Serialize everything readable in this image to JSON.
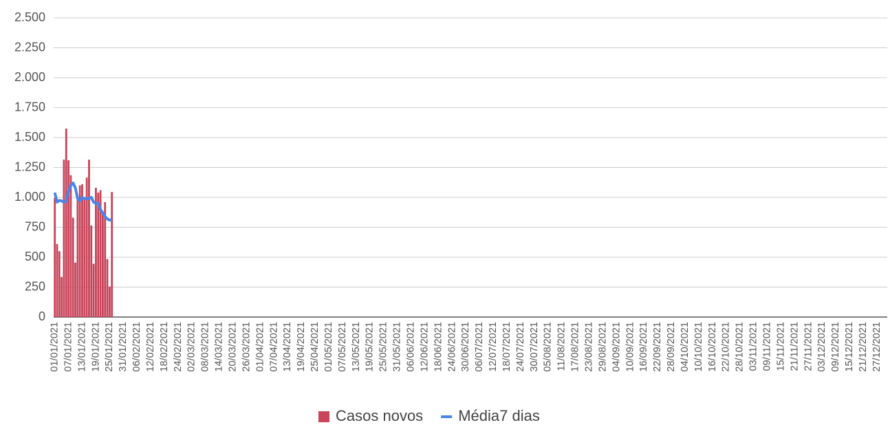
{
  "chart_data": {
    "type": "bar_line",
    "categories": [
      "01/01/2021",
      null,
      null,
      null,
      null,
      null,
      "07/01/2021",
      null,
      null,
      null,
      null,
      null,
      "13/01/2021",
      null,
      null,
      null,
      null,
      null,
      "19/01/2021",
      null,
      null,
      null,
      null,
      null,
      "25/01/2021",
      null,
      null,
      null,
      null,
      null,
      "31/01/2021",
      null,
      null,
      null,
      null,
      null,
      "06/02/2021",
      null,
      null,
      null,
      null,
      null,
      "12/02/2021",
      null,
      null,
      null,
      null,
      null,
      "18/02/2021",
      null,
      null,
      null,
      null,
      null,
      "24/02/2021",
      null,
      null,
      null,
      null,
      null,
      "02/03/2021",
      null,
      null,
      null,
      null,
      null,
      "08/03/2021",
      null,
      null,
      null,
      null,
      null,
      "14/03/2021",
      null,
      null,
      null,
      null,
      null,
      "20/03/2021",
      null,
      null,
      null,
      null,
      null,
      "26/03/2021",
      null,
      null,
      null,
      null,
      null,
      "01/04/2021",
      null,
      null,
      null,
      null,
      null,
      "07/04/2021",
      null,
      null,
      null,
      null,
      null,
      "13/04/2021",
      null,
      null,
      null,
      null,
      null,
      "19/04/2021",
      null,
      null,
      null,
      null,
      null,
      "25/04/2021",
      null,
      null,
      null,
      null,
      null,
      "01/05/2021",
      null,
      null,
      null,
      null,
      null,
      "07/05/2021",
      null,
      null,
      null,
      null,
      null,
      "13/05/2021",
      null,
      null,
      null,
      null,
      null,
      "19/05/2021",
      null,
      null,
      null,
      null,
      null,
      "25/05/2021",
      null,
      null,
      null,
      null,
      null,
      "31/05/2021",
      null,
      null,
      null,
      null,
      null,
      "06/06/2021",
      null,
      null,
      null,
      null,
      null,
      "12/06/2021",
      null,
      null,
      null,
      null,
      null,
      "18/06/2021",
      null,
      null,
      null,
      null,
      null,
      "24/06/2021",
      null,
      null,
      null,
      null,
      null,
      "30/06/2021",
      null,
      null,
      null,
      null,
      null,
      "06/07/2021",
      null,
      null,
      null,
      null,
      null,
      "12/07/2021",
      null,
      null,
      null,
      null,
      null,
      "18/07/2021",
      null,
      null,
      null,
      null,
      null,
      "24/07/2021",
      null,
      null,
      null,
      null,
      null,
      "30/07/2021",
      null,
      null,
      null,
      null,
      null,
      "05/08/2021",
      null,
      null,
      null,
      null,
      null,
      "11/08/2021",
      null,
      null,
      null,
      null,
      null,
      "17/08/2021",
      null,
      null,
      null,
      null,
      null,
      "23/08/2021",
      null,
      null,
      null,
      null,
      null,
      "29/08/2021",
      null,
      null,
      null,
      null,
      null,
      "04/09/2021",
      null,
      null,
      null,
      null,
      null,
      "10/09/2021",
      null,
      null,
      null,
      null,
      null,
      "16/09/2021",
      null,
      null,
      null,
      null,
      null,
      "22/09/2021",
      null,
      null,
      null,
      null,
      null,
      "28/09/2021",
      null,
      null,
      null,
      null,
      null,
      "04/10/2021",
      null,
      null,
      null,
      null,
      null,
      "10/10/2021",
      null,
      null,
      null,
      null,
      null,
      "16/10/2021",
      null,
      null,
      null,
      null,
      null,
      "22/10/2021",
      null,
      null,
      null,
      null,
      null,
      "28/10/2021",
      null,
      null,
      null,
      null,
      null,
      "03/11/2021",
      null,
      null,
      null,
      null,
      null,
      "09/11/2021",
      null,
      null,
      null,
      null,
      null,
      "15/11/2021",
      null,
      null,
      null,
      null,
      null,
      "21/11/2021",
      null,
      null,
      null,
      null,
      null,
      "27/11/2021",
      null,
      null,
      null,
      null,
      null,
      "03/12/2021",
      null,
      null,
      null,
      null,
      null,
      "09/12/2021",
      null,
      null,
      null,
      null,
      null,
      "15/12/2021",
      null,
      null,
      null,
      null,
      null,
      "21/12/2021",
      null,
      null,
      null,
      null,
      null,
      "27/12/2021",
      null,
      null,
      null,
      null
    ],
    "series": [
      {
        "name": "Casos novos",
        "color": "#c8455a",
        "kind": "bar",
        "values": [
          995,
          610,
          550,
          335,
          1315,
          1575,
          1310,
          1185,
          830,
          455,
          1000,
          1100,
          1110,
          980,
          1165,
          1315,
          765,
          445,
          1080,
          1040,
          1060,
          880,
          960,
          485,
          255,
          1045,
          null,
          null,
          null,
          null,
          null,
          null,
          null,
          null,
          null,
          null,
          null,
          null,
          null,
          null,
          null,
          null,
          null,
          null,
          null,
          null,
          null,
          null,
          null,
          null,
          null,
          null,
          null,
          null,
          null,
          null,
          null,
          null,
          null,
          null,
          null,
          null,
          null,
          null,
          null,
          null,
          null,
          null,
          null,
          null,
          null,
          null,
          null,
          null,
          null,
          null,
          null,
          null,
          null,
          null,
          null,
          null,
          null,
          null,
          null,
          null,
          null,
          null,
          null,
          null,
          null,
          null,
          null,
          null,
          null,
          null,
          null,
          null,
          null,
          null,
          null,
          null,
          null,
          null,
          null,
          null,
          null,
          null,
          null,
          null,
          null,
          null,
          null,
          null,
          null,
          null,
          null,
          null,
          null,
          null,
          null,
          null,
          null,
          null,
          null,
          null,
          null,
          null,
          null,
          null,
          null,
          null,
          null,
          null,
          null,
          null,
          null,
          null,
          null,
          null,
          null,
          null,
          null,
          null,
          null,
          null,
          null,
          null,
          null,
          null,
          null,
          null,
          null,
          null,
          null,
          null,
          null,
          null,
          null,
          null,
          null,
          null,
          null,
          null,
          null,
          null,
          null,
          null,
          null,
          null,
          null,
          null,
          null,
          null,
          null,
          null,
          null,
          null,
          null,
          null,
          null,
          null,
          null,
          null,
          null,
          null,
          null,
          null,
          null,
          null,
          null,
          null,
          null,
          null,
          null,
          null,
          null,
          null,
          null,
          null,
          null,
          null,
          null,
          null,
          null,
          null,
          null,
          null,
          null,
          null,
          null,
          null,
          null,
          null,
          null,
          null,
          null,
          null,
          null,
          null,
          null,
          null,
          null,
          null,
          null,
          null,
          null,
          null,
          null,
          null,
          null,
          null,
          null,
          null,
          null,
          null,
          null,
          null,
          null,
          null,
          null,
          null,
          null,
          null,
          null,
          null,
          null,
          null,
          null,
          null,
          null,
          null,
          null,
          null,
          null,
          null,
          null,
          null,
          null,
          null,
          null,
          null,
          null,
          null,
          null,
          null,
          null,
          null,
          null,
          null,
          null,
          null,
          null,
          null,
          null,
          null,
          null,
          null,
          null,
          null,
          null,
          null,
          null,
          null,
          null,
          null,
          null,
          null,
          null,
          null,
          null,
          null,
          null,
          null,
          null,
          null,
          null,
          null,
          null,
          null,
          null,
          null,
          null,
          null,
          null,
          null,
          null,
          null,
          null,
          null,
          null,
          null,
          null,
          null,
          null,
          null,
          null,
          null,
          null,
          null,
          null,
          null,
          null,
          null,
          null,
          null,
          null,
          null,
          null,
          null,
          null,
          null,
          null,
          null,
          null,
          null,
          null,
          null,
          null,
          null,
          null,
          null,
          null,
          null,
          null,
          null,
          null,
          null,
          null,
          null,
          null,
          null,
          null,
          null,
          null,
          null,
          null,
          null,
          null,
          null,
          null,
          null,
          null,
          null,
          null
        ]
      },
      {
        "name": "Média7 dias",
        "color": "#4a86e8",
        "kind": "line",
        "values": [
          1040,
          960,
          975,
          970,
          960,
          970,
          1050,
          1100,
          1120,
          1080,
          990,
          970,
          1000,
          990,
          990,
          990,
          1000,
          960,
          950,
          950,
          900,
          870,
          840,
          820,
          810,
          815,
          null,
          null,
          null,
          null,
          null,
          null,
          null,
          null,
          null,
          null,
          null,
          null,
          null,
          null,
          null,
          null,
          null,
          null,
          null,
          null,
          null,
          null,
          null,
          null,
          null,
          null,
          null,
          null,
          null,
          null,
          null,
          null,
          null,
          null,
          null,
          null,
          null,
          null,
          null,
          null,
          null,
          null,
          null,
          null,
          null,
          null,
          null,
          null,
          null,
          null,
          null,
          null,
          null,
          null,
          null,
          null,
          null,
          null,
          null,
          null,
          null,
          null,
          null,
          null,
          null,
          null,
          null,
          null,
          null,
          null,
          null,
          null,
          null,
          null,
          null,
          null,
          null,
          null,
          null,
          null,
          null,
          null,
          null,
          null,
          null,
          null,
          null,
          null,
          null,
          null,
          null,
          null,
          null,
          null,
          null,
          null,
          null,
          null,
          null,
          null,
          null,
          null,
          null,
          null,
          null,
          null,
          null,
          null,
          null,
          null,
          null,
          null,
          null,
          null,
          null,
          null,
          null,
          null,
          null,
          null,
          null,
          null,
          null,
          null,
          null,
          null,
          null,
          null,
          null,
          null,
          null,
          null,
          null,
          null,
          null,
          null,
          null,
          null,
          null,
          null,
          null,
          null,
          null,
          null,
          null,
          null,
          null,
          null,
          null,
          null,
          null,
          null,
          null,
          null,
          null,
          null,
          null,
          null,
          null,
          null,
          null,
          null,
          null,
          null,
          null,
          null,
          null,
          null,
          null,
          null,
          null,
          null,
          null,
          null,
          null,
          null,
          null,
          null,
          null,
          null,
          null,
          null,
          null,
          null,
          null,
          null,
          null,
          null,
          null,
          null,
          null,
          null,
          null,
          null,
          null,
          null,
          null,
          null,
          null,
          null,
          null,
          null,
          null,
          null,
          null,
          null,
          null,
          null,
          null,
          null,
          null,
          null,
          null,
          null,
          null,
          null,
          null,
          null,
          null,
          null,
          null,
          null,
          null,
          null,
          null,
          null,
          null,
          null,
          null,
          null,
          null,
          null,
          null,
          null,
          null,
          null,
          null,
          null,
          null,
          null,
          null,
          null,
          null,
          null,
          null,
          null,
          null,
          null,
          null,
          null,
          null,
          null,
          null,
          null,
          null,
          null,
          null,
          null,
          null,
          null,
          null,
          null,
          null,
          null,
          null,
          null,
          null,
          null,
          null,
          null,
          null,
          null,
          null,
          null,
          null,
          null,
          null,
          null,
          null,
          null,
          null,
          null,
          null,
          null,
          null,
          null,
          null,
          null,
          null,
          null,
          null,
          null,
          null,
          null,
          null,
          null,
          null,
          null,
          null,
          null,
          null,
          null,
          null,
          null,
          null,
          null,
          null,
          null,
          null,
          null,
          null,
          null,
          null,
          null,
          null,
          null,
          null,
          null,
          null,
          null,
          null,
          null,
          null,
          null,
          null,
          null,
          null,
          null,
          null,
          null,
          null,
          null,
          null,
          null,
          null,
          null,
          null,
          null,
          null
        ]
      }
    ],
    "ylim": [
      0,
      2500
    ],
    "yticks": [
      0,
      250,
      500,
      750,
      {
        "value": 1000,
        "label": "1.000"
      },
      {
        "value": 1250,
        "label": "1.250"
      },
      {
        "value": 1500,
        "label": "1.500"
      },
      {
        "value": 1750,
        "label": "1.750"
      },
      {
        "value": 2000,
        "label": "2.000"
      },
      {
        "value": 2250,
        "label": "2.250"
      },
      {
        "value": 2500,
        "label": "2.500"
      }
    ],
    "grid": true,
    "legend": "bottom"
  }
}
